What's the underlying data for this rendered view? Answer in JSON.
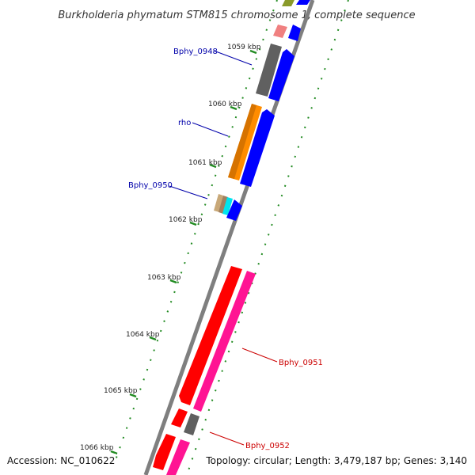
{
  "title": "Burkholderia phymatum STM815 chromosome 1, complete sequence",
  "kbp_labels": [
    "1059 kbp",
    "1060 kbp",
    "1061 kbp",
    "1062 kbp",
    "1063 kbp",
    "1064 kbp",
    "1065 kbp",
    "1066 kbp"
  ],
  "genes": {
    "bphy_0948": "Bphy_0948",
    "rho": "rho",
    "bphy_0950": "Bphy_0950",
    "bphy_0951": "Bphy_0951",
    "bphy_0952": "Bphy_0952"
  },
  "footer": {
    "accession": "Accession: NC_010622",
    "topology": "Topology: circular; Length: 3,479,187 bp; Genes: 3,140"
  },
  "colors": {
    "backbone": "#7f7f7f",
    "tick": "#228b22",
    "blue": "#0000ff",
    "gray": "#606060",
    "orange": "#ff8c00",
    "red": "#ff0000",
    "pink": "#ff1493",
    "salmon": "#f08080",
    "tan": "#c8a878",
    "cyan": "#00e5ee"
  }
}
